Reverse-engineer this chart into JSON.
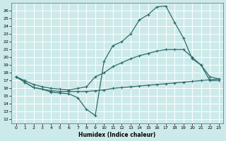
{
  "xlabel": "Humidex (Indice chaleur)",
  "bg_color": "#cdeaea",
  "grid_color": "#b0d0d0",
  "line_color": "#2e6b6b",
  "xlim": [
    -0.5,
    23.5
  ],
  "ylim": [
    11.5,
    27
  ],
  "yticks": [
    12,
    13,
    14,
    15,
    16,
    17,
    18,
    19,
    20,
    21,
    22,
    23,
    24,
    25,
    26
  ],
  "xticks": [
    0,
    1,
    2,
    3,
    4,
    5,
    6,
    7,
    8,
    9,
    10,
    11,
    12,
    13,
    14,
    15,
    16,
    17,
    18,
    19,
    20,
    21,
    22,
    23
  ],
  "line1_x": [
    0,
    1,
    2,
    3,
    4,
    5,
    6,
    7,
    8,
    9,
    10,
    11,
    12,
    13,
    14,
    15,
    16,
    17,
    18,
    19,
    20,
    21,
    22,
    23
  ],
  "line1_y": [
    17.5,
    16.8,
    16.1,
    15.9,
    15.7,
    15.6,
    15.6,
    15.6,
    15.6,
    15.7,
    15.8,
    16.0,
    16.1,
    16.2,
    16.3,
    16.4,
    16.5,
    16.6,
    16.7,
    16.8,
    16.9,
    17.0,
    17.1,
    17.2
  ],
  "line2_x": [
    0,
    1,
    2,
    3,
    4,
    5,
    6,
    7,
    8,
    9,
    10,
    11,
    12,
    13,
    14,
    15,
    16,
    17,
    18,
    19,
    20,
    21,
    22,
    23
  ],
  "line2_y": [
    17.5,
    17.0,
    16.5,
    16.2,
    16.0,
    15.9,
    15.8,
    16.0,
    16.2,
    17.5,
    18.0,
    18.8,
    19.3,
    19.8,
    20.2,
    20.5,
    20.8,
    21.0,
    21.0,
    21.0,
    20.0,
    19.0,
    17.5,
    17.2
  ],
  "line3_x": [
    0,
    1,
    2,
    3,
    4,
    5,
    6,
    7,
    8,
    9,
    10,
    11,
    12,
    13,
    14,
    15,
    16,
    17,
    18,
    19,
    20,
    21,
    22,
    23
  ],
  "line3_y": [
    17.5,
    16.8,
    16.1,
    15.9,
    15.5,
    15.4,
    15.3,
    14.8,
    13.3,
    12.5,
    19.5,
    21.5,
    22.0,
    23.0,
    24.8,
    25.5,
    26.5,
    26.6,
    24.5,
    22.5,
    19.8,
    19.0,
    17.0,
    17.0
  ],
  "marker": "+",
  "markersize": 3,
  "linewidth": 0.9
}
